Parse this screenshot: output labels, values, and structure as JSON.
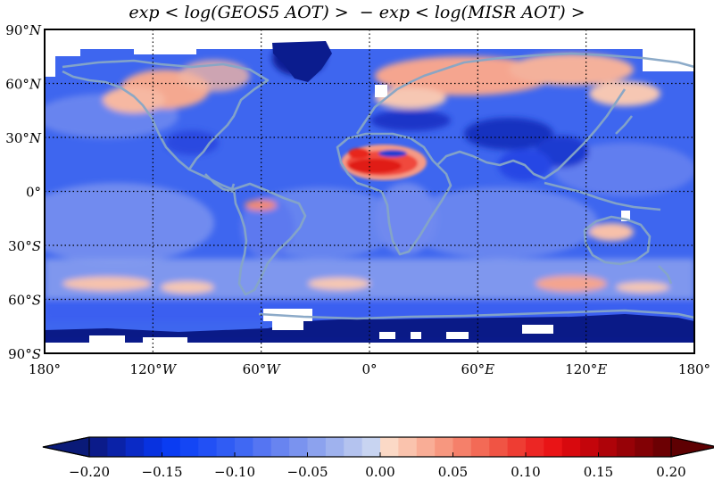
{
  "title": "exp < log(GEOS5 AOT) >  − exp < log(MISR AOT) >",
  "map": {
    "lat_ticks": [
      {
        "value": 90,
        "deg": "90°",
        "hemi": "N"
      },
      {
        "value": 60,
        "deg": "60°",
        "hemi": "N"
      },
      {
        "value": 30,
        "deg": "30°",
        "hemi": "N"
      },
      {
        "value": 0,
        "deg": "0°",
        "hemi": ""
      },
      {
        "value": -30,
        "deg": "30°",
        "hemi": "S"
      },
      {
        "value": -60,
        "deg": "60°",
        "hemi": "S"
      },
      {
        "value": -90,
        "deg": "90°",
        "hemi": "S"
      }
    ],
    "lon_ticks": [
      {
        "value": -180,
        "deg": "180°",
        "hemi": ""
      },
      {
        "value": -120,
        "deg": "120°",
        "hemi": "W"
      },
      {
        "value": -60,
        "deg": "60°",
        "hemi": "W"
      },
      {
        "value": 0,
        "deg": "0°",
        "hemi": ""
      },
      {
        "value": 60,
        "deg": "60°",
        "hemi": "E"
      },
      {
        "value": 120,
        "deg": "120°",
        "hemi": "E"
      },
      {
        "value": 180,
        "deg": "180°",
        "hemi": ""
      }
    ],
    "grid": true,
    "lat_range": [
      -90,
      90
    ],
    "lon_range": [
      -180,
      180
    ]
  },
  "colorbar": {
    "vmin": -0.2,
    "vmax": 0.2,
    "tick_labels": [
      "−0.20",
      "−0.15",
      "−0.10",
      "−0.05",
      "0.00",
      "0.05",
      "0.10",
      "0.15",
      "0.20"
    ],
    "tick_values": [
      -0.2,
      -0.15,
      -0.1,
      -0.05,
      0,
      0.05,
      0.1,
      0.15,
      0.2
    ],
    "colors": [
      "#0b1b8a",
      "#0a22a8",
      "#0a2ac6",
      "#0832e0",
      "#0a3cf2",
      "#1446f5",
      "#2250f5",
      "#305cf4",
      "#4068f3",
      "#5575f2",
      "#6884f0",
      "#7a93ef",
      "#8ca2ee",
      "#9fb2ee",
      "#b4c3ef",
      "#c8d4f1",
      "#fbd9c6",
      "#fac3ad",
      "#f9ad96",
      "#f7977f",
      "#f5806a",
      "#f36a56",
      "#f05444",
      "#ee3d33",
      "#ec2624",
      "#e91416",
      "#d8090e",
      "#c4050b",
      "#ae0309",
      "#970207",
      "#820105",
      "#6c0003"
    ],
    "low_extend_color": "#0a1a78",
    "high_extend_color": "#5e0002"
  },
  "legend_colors": {
    "ocean_base": "#3e66ef",
    "coast": "#86a6c6",
    "no_data": "#ffffff"
  }
}
